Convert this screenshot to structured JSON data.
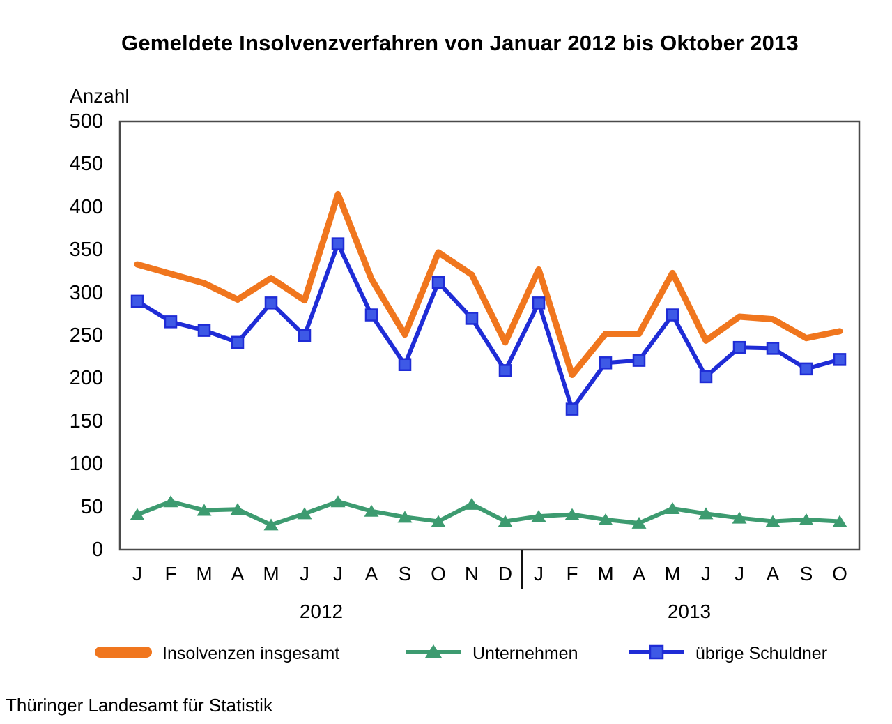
{
  "title": "Gemeldete Insolvenzverfahren von Januar 2012 bis Oktober 2013",
  "footer": "Thüringer Landesamt für Statistik",
  "ylabel": "Anzahl",
  "colors": {
    "total": "#F0761E",
    "companies": "#3D9B70",
    "other_debtors_line": "#1F2CD6",
    "other_debtors_fill": "#3E59E6",
    "axis": "#4a4a4a",
    "separator": "#111111",
    "text": "#000000"
  },
  "chart_data": {
    "type": "line",
    "title": "Gemeldete Insolvenzverfahren von Januar 2012 bis Oktober 2013",
    "xlabel": "",
    "ylabel": "Anzahl",
    "ylim": [
      0,
      500
    ],
    "ytick_step": 50,
    "yticks": [
      0,
      50,
      100,
      150,
      200,
      250,
      300,
      350,
      400,
      450,
      500
    ],
    "grid": false,
    "legend_position": "bottom",
    "categories": [
      "J",
      "F",
      "M",
      "A",
      "M",
      "J",
      "J",
      "A",
      "S",
      "O",
      "N",
      "D",
      "J",
      "F",
      "M",
      "A",
      "M",
      "J",
      "J",
      "A",
      "S",
      "O"
    ],
    "year_groups": [
      {
        "label": "2012",
        "months": 12
      },
      {
        "label": "2013",
        "months": 10
      }
    ],
    "series": [
      {
        "name": "Insolvenzen insgesamt",
        "marker": "none",
        "color": "#F0761E",
        "line_width": 9,
        "values": [
          333,
          322,
          311,
          292,
          317,
          291,
          415,
          316,
          251,
          347,
          321,
          242,
          327,
          204,
          252,
          252,
          323,
          244,
          272,
          269,
          247,
          255
        ]
      },
      {
        "name": "Unternehmen",
        "marker": "triangle",
        "color": "#3D9B70",
        "line_width": 6,
        "values": [
          41,
          56,
          46,
          47,
          29,
          42,
          56,
          45,
          38,
          33,
          53,
          33,
          39,
          41,
          35,
          31,
          48,
          42,
          37,
          33,
          35,
          33
        ]
      },
      {
        "name": "übrige Schuldner",
        "marker": "square",
        "color": "#1F2CD6",
        "marker_fill": "#3E59E6",
        "line_width": 6,
        "values": [
          290,
          266,
          256,
          242,
          288,
          250,
          357,
          274,
          216,
          312,
          270,
          209,
          288,
          164,
          218,
          221,
          274,
          202,
          236,
          235,
          211,
          222
        ]
      }
    ]
  }
}
